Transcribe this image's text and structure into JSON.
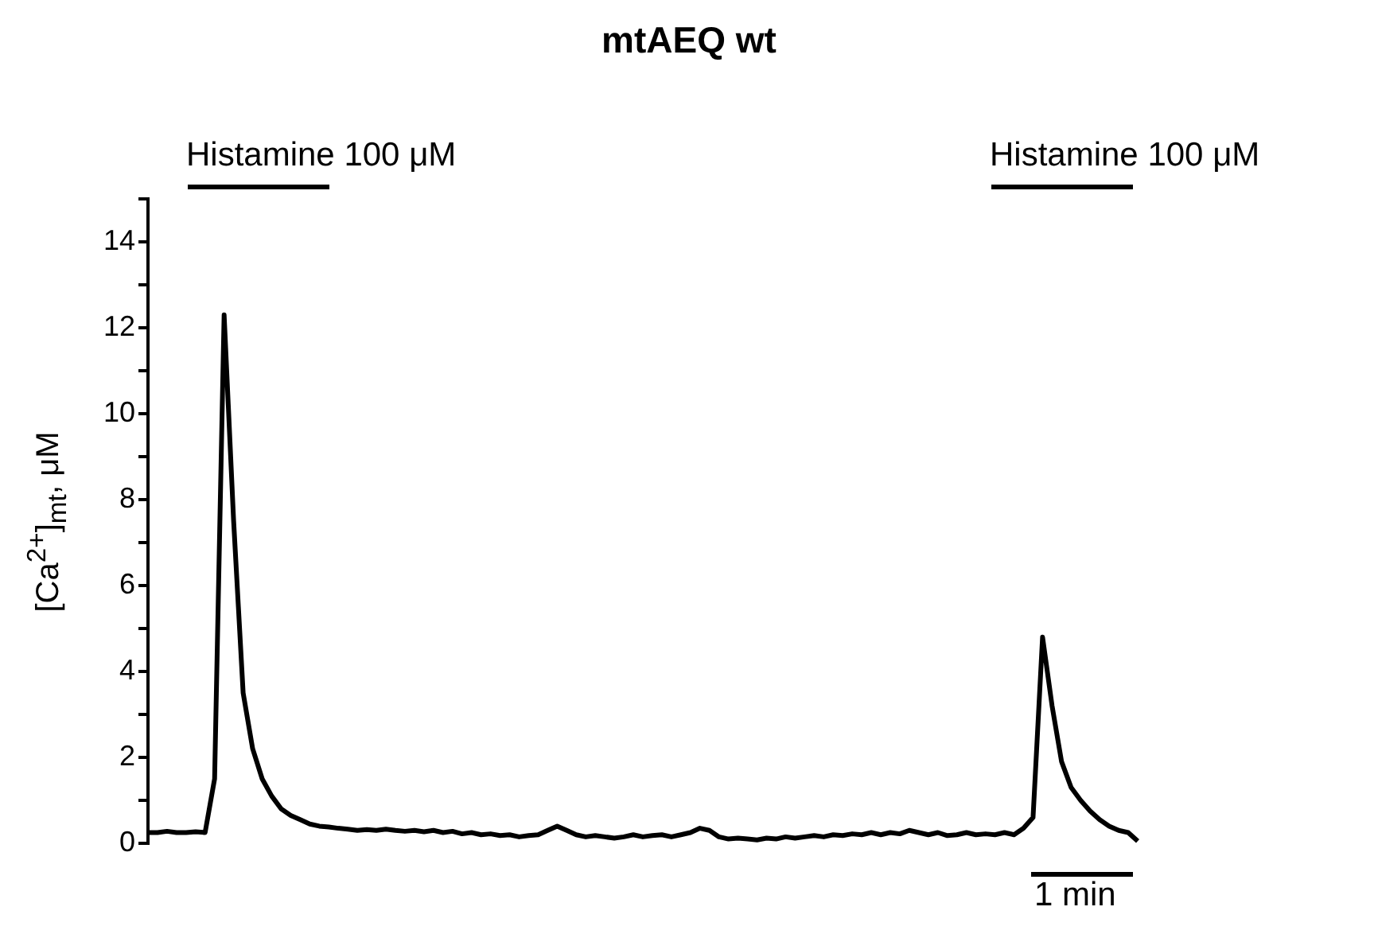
{
  "chart_data": {
    "type": "line",
    "title": "mtAEQ wt",
    "ylabel": "[Ca$^{2+}$]$_{mt}$, μM",
    "annotations": [
      "Histamine 100 μM",
      "Histamine 100 μM",
      "1 min"
    ],
    "categories": [
      null,
      null,
      null,
      null,
      null,
      null,
      null,
      null,
      null,
      null,
      null,
      null,
      null,
      null,
      null,
      null,
      null,
      null,
      null,
      null,
      null,
      null,
      null,
      null,
      null,
      null,
      null,
      null,
      null,
      null,
      null,
      null,
      null,
      null,
      null,
      null,
      null,
      null,
      null,
      null,
      null,
      null,
      null,
      null,
      null,
      null,
      null,
      null,
      null,
      null,
      null,
      null,
      null,
      null,
      null,
      null,
      null,
      null,
      null,
      null,
      null,
      null,
      null,
      null,
      null,
      null,
      null,
      null,
      null,
      null,
      null,
      null,
      null,
      null,
      null,
      null,
      null,
      null,
      null,
      null,
      null,
      null,
      null,
      null,
      null,
      null,
      null,
      null,
      null,
      null,
      null,
      null,
      null,
      null,
      null,
      null,
      null,
      null,
      null,
      null,
      null,
      null,
      null,
      null,
      null
    ],
    "values": [
      0.25,
      0.25,
      0.28,
      0.25,
      0.25,
      0.27,
      0.25,
      1.5,
      12.3,
      7.5,
      3.5,
      2.2,
      1.5,
      1.1,
      0.8,
      0.65,
      0.55,
      0.45,
      0.4,
      0.38,
      0.35,
      0.33,
      0.3,
      0.32,
      0.3,
      0.33,
      0.3,
      0.28,
      0.3,
      0.27,
      0.3,
      0.25,
      0.28,
      0.22,
      0.25,
      0.2,
      0.22,
      0.18,
      0.2,
      0.15,
      0.18,
      0.2,
      0.3,
      0.4,
      0.3,
      0.2,
      0.15,
      0.18,
      0.15,
      0.12,
      0.15,
      0.2,
      0.15,
      0.18,
      0.2,
      0.15,
      0.2,
      0.25,
      0.35,
      0.3,
      0.15,
      0.1,
      0.12,
      0.1,
      0.08,
      0.12,
      0.1,
      0.15,
      0.12,
      0.15,
      0.18,
      0.15,
      0.2,
      0.18,
      0.22,
      0.2,
      0.25,
      0.2,
      0.25,
      0.22,
      0.3,
      0.25,
      0.2,
      0.25,
      0.18,
      0.2,
      0.25,
      0.2,
      0.22,
      0.2,
      0.25,
      0.2,
      0.35,
      0.6,
      4.8,
      3.2,
      1.9,
      1.3,
      1.0,
      0.75,
      0.55,
      0.4,
      0.3,
      0.25,
      0.05
    ],
    "color": "#000000",
    "ylim": [
      0,
      15
    ],
    "yticks": [
      0,
      {
        "value": 1,
        "label": null
      },
      2,
      {
        "value": 3,
        "label": null
      },
      4,
      {
        "value": 5,
        "label": null
      },
      6,
      {
        "value": 7,
        "label": null
      },
      8,
      {
        "value": 9,
        "label": null
      },
      10,
      {
        "value": 11,
        "label": null
      },
      12,
      {
        "value": 13,
        "label": null
      },
      14,
      {
        "value": 15,
        "label": null
      }
    ],
    "grid": false,
    "tick_labels": "y"
  }
}
